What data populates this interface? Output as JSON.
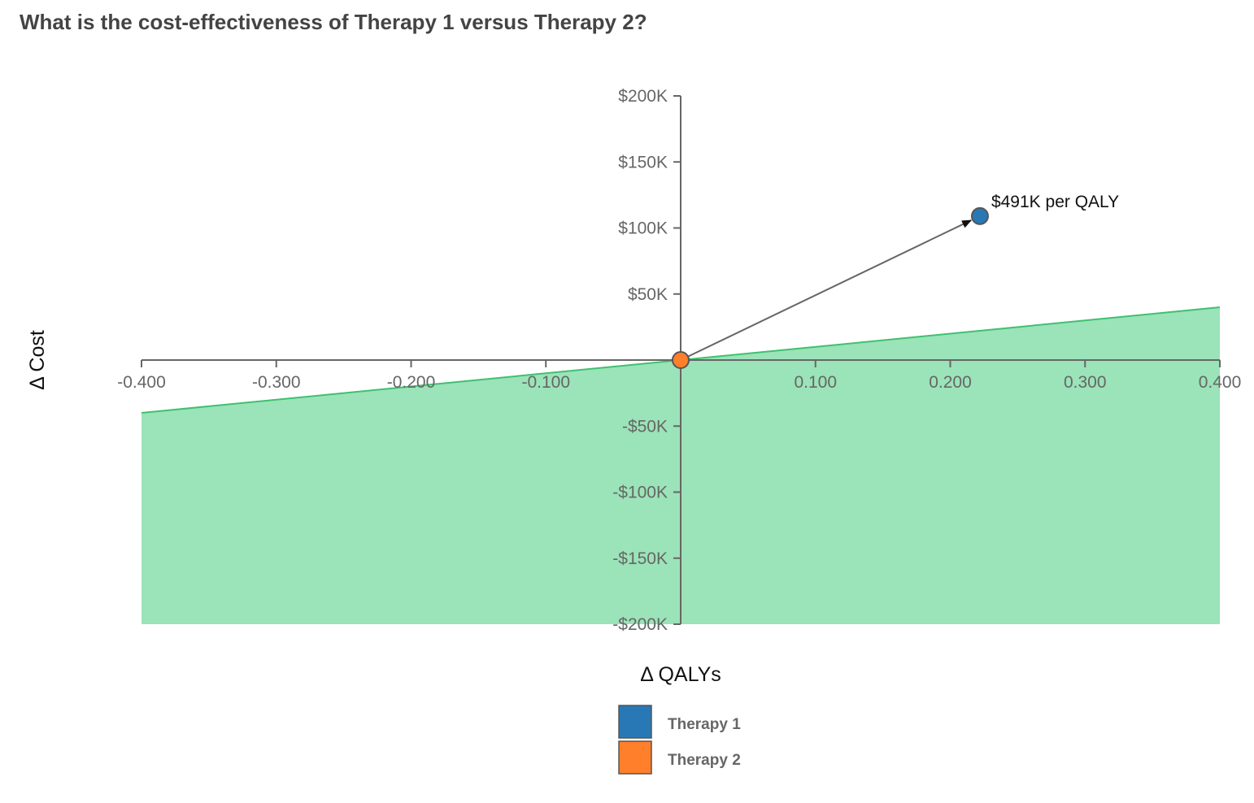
{
  "title": "What is the cost-effectiveness of Therapy 1 versus Therapy 2?",
  "chart_data": {
    "type": "scatter",
    "title": "What is the cost-effectiveness of Therapy 1 versus Therapy 2?",
    "xlabel": "Δ QALYs",
    "ylabel": "Δ Cost",
    "xlim": [
      -0.4,
      0.4
    ],
    "ylim": [
      -200000,
      200000
    ],
    "x_ticks": [
      -0.4,
      -0.3,
      -0.2,
      -0.1,
      0.1,
      0.2,
      0.3,
      0.4
    ],
    "x_tick_labels": [
      "-0.400",
      "-0.300",
      "-0.200",
      "-0.100",
      "0.100",
      "0.200",
      "0.300",
      "0.400"
    ],
    "y_ticks": [
      200000,
      150000,
      100000,
      50000,
      -50000,
      -100000,
      -150000,
      -200000
    ],
    "y_tick_labels": [
      "$200K",
      "$150K",
      "$100K",
      "$50K",
      "-$50K",
      "-$100K",
      "-$150K",
      "-$200K"
    ],
    "grid": false,
    "legend_position": "bottom",
    "series": [
      {
        "name": "Therapy 1",
        "x": [
          0.222
        ],
        "y": [
          109000
        ],
        "color": "#2878b5"
      },
      {
        "name": "Therapy 2",
        "x": [
          0.0
        ],
        "y": [
          0
        ],
        "color": "#ff7f2a"
      }
    ],
    "threshold_region": {
      "wtp_per_qaly": 100000,
      "line_start": [
        -0.4,
        -40000
      ],
      "line_end": [
        0.4,
        40000
      ],
      "fill_color": "#9be3b8",
      "line_color": "#40c070"
    },
    "annotations": [
      {
        "text": "$491K per QALY",
        "from": [
          0,
          0
        ],
        "to": [
          0.222,
          109000
        ]
      }
    ]
  }
}
